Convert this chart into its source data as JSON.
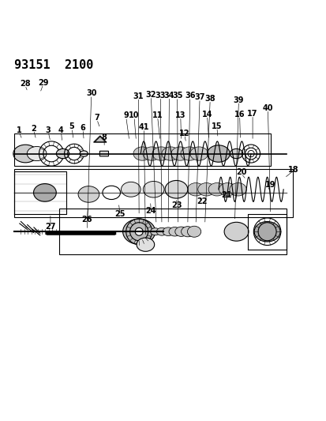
{
  "title": "93151  2100",
  "bg_color": "#ffffff",
  "fg_color": "#000000",
  "title_fontsize": 11,
  "label_fontsize": 7,
  "figsize": [
    4.14,
    5.33
  ],
  "dpi": 100
}
